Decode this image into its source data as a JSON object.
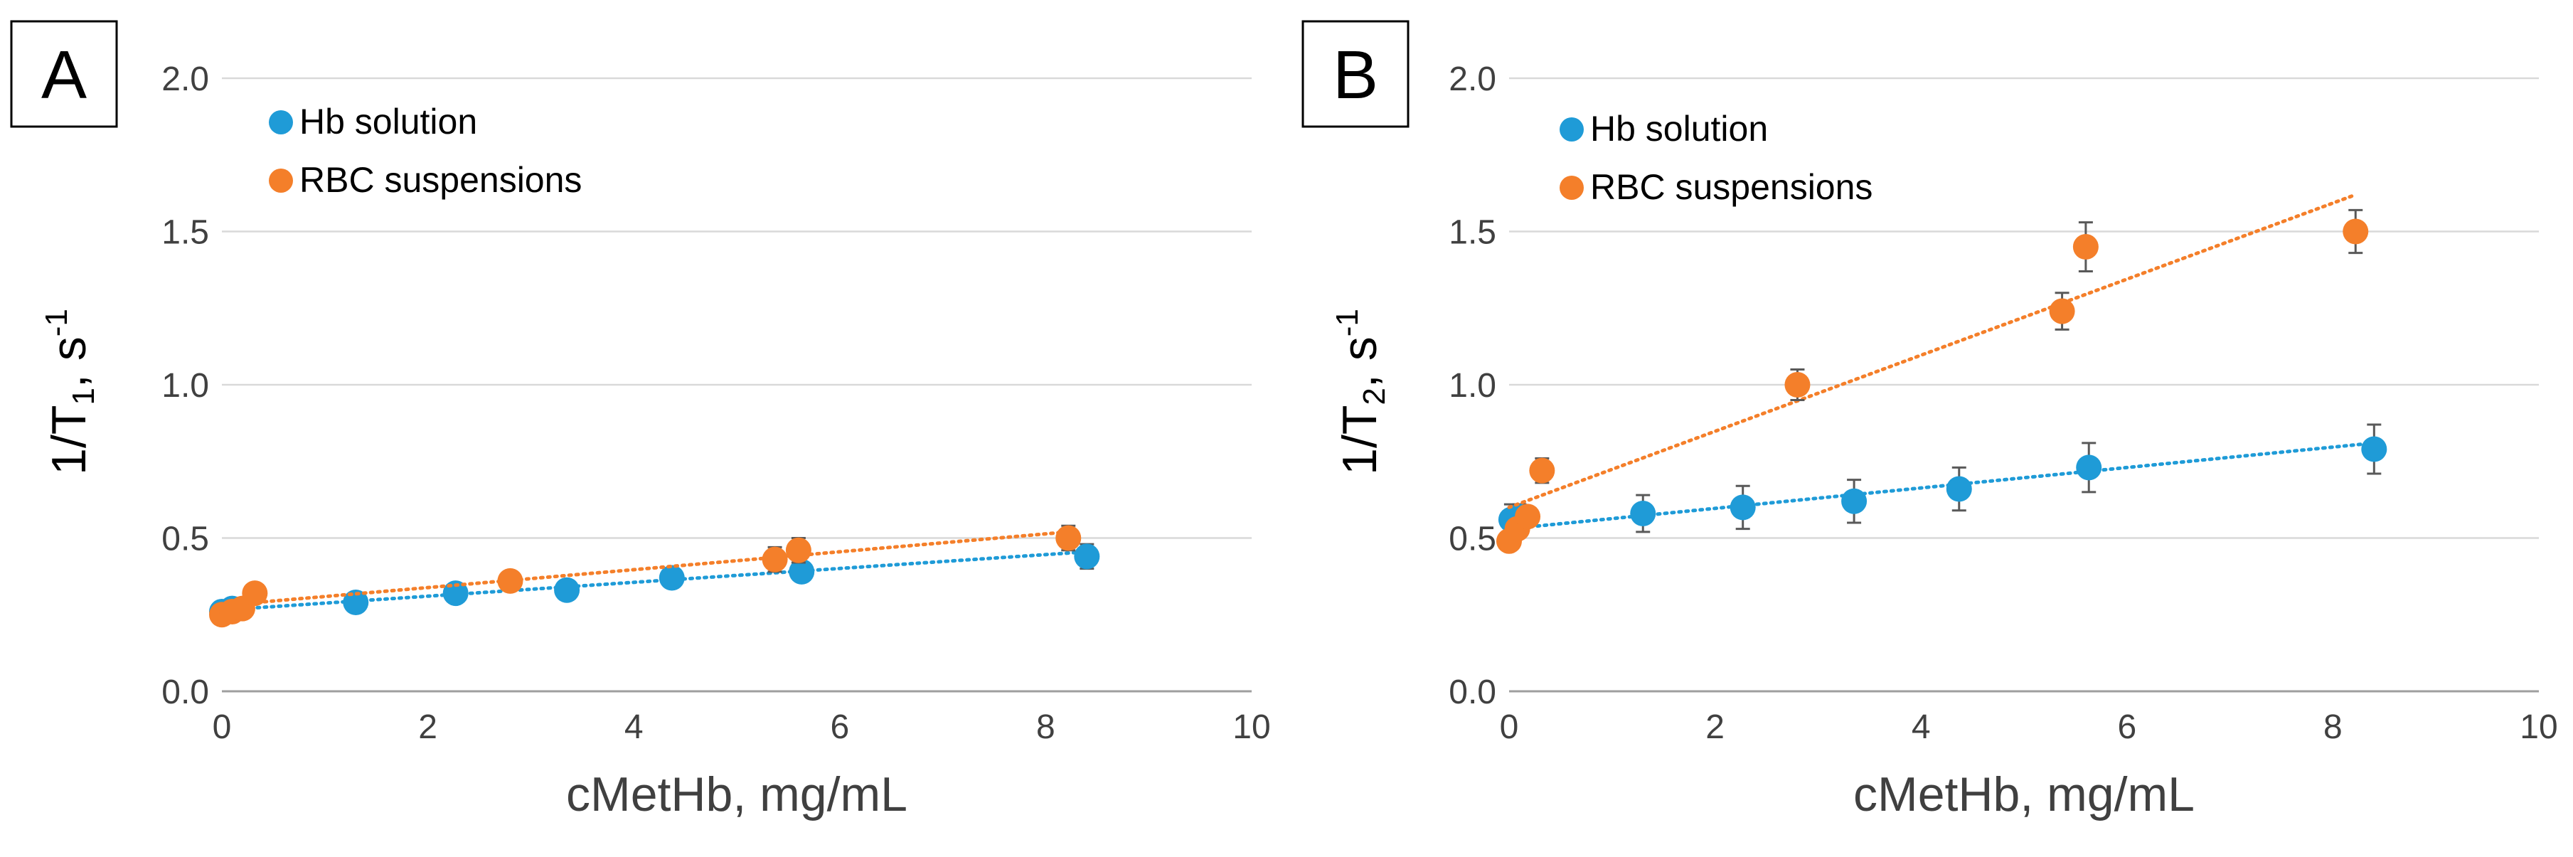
{
  "chart_data": [
    {
      "type": "scatter",
      "panel_label": "A",
      "xlabel": "cMetHb, mg/mL",
      "ylabel": {
        "main": "1/T",
        "sub": "1",
        "tail": ", s",
        "sup": "-1"
      },
      "xlim": [
        0,
        10
      ],
      "ylim": [
        0,
        2
      ],
      "xticks": [
        "0",
        "2",
        "4",
        "6",
        "8",
        "10"
      ],
      "yticks": [
        "0.0",
        "0.5",
        "1.0",
        "1.5",
        "2.0"
      ],
      "grid": "horizontal",
      "legend_position": "top-left",
      "series": [
        {
          "name": "Hb solution",
          "color": "#1f9bd7",
          "x": [
            0.0,
            0.05,
            0.1,
            1.3,
            2.27,
            3.35,
            4.37,
            5.63,
            8.4
          ],
          "y": [
            0.26,
            0.26,
            0.27,
            0.29,
            0.32,
            0.33,
            0.37,
            0.39,
            0.44
          ],
          "yerr": [
            0.02,
            0.02,
            0.02,
            0.02,
            0.02,
            0.02,
            0.03,
            0.03,
            0.04
          ],
          "trend": {
            "x": [
              0.0,
              8.4
            ],
            "y": [
              0.265,
              0.455
            ]
          }
        },
        {
          "name": "RBC suspensions",
          "color": "#f47f2a",
          "x": [
            0.0,
            0.1,
            0.2,
            0.32,
            2.8,
            5.37,
            5.6,
            8.22
          ],
          "y": [
            0.25,
            0.26,
            0.27,
            0.32,
            0.36,
            0.43,
            0.46,
            0.5
          ],
          "yerr": [
            0.02,
            0.02,
            0.02,
            0.02,
            0.03,
            0.04,
            0.04,
            0.04
          ],
          "trend": {
            "x": [
              0.0,
              8.22
            ],
            "y": [
              0.28,
              0.52
            ]
          }
        }
      ]
    },
    {
      "type": "scatter",
      "panel_label": "B",
      "xlabel": "cMetHb, mg/mL",
      "ylabel": {
        "main": "1/T",
        "sub": "2",
        "tail": ", s",
        "sup": "-1"
      },
      "xlim": [
        0,
        10
      ],
      "ylim": [
        0,
        2
      ],
      "xticks": [
        "0",
        "2",
        "4",
        "6",
        "8",
        "10"
      ],
      "yticks": [
        "0.0",
        "0.5",
        "1.0",
        "1.5",
        "2.0"
      ],
      "grid": "horizontal",
      "legend_position": "top-left",
      "series": [
        {
          "name": "Hb solution",
          "color": "#1f9bd7",
          "x": [
            0.02,
            0.1,
            1.3,
            2.27,
            3.35,
            4.37,
            5.63,
            8.4
          ],
          "y": [
            0.56,
            0.57,
            0.58,
            0.6,
            0.62,
            0.66,
            0.73,
            0.79
          ],
          "yerr": [
            0.05,
            0.04,
            0.06,
            0.07,
            0.07,
            0.07,
            0.08,
            0.08
          ],
          "trend": {
            "x": [
              0.0,
              8.4
            ],
            "y": [
              0.53,
              0.81
            ]
          }
        },
        {
          "name": "RBC suspensions",
          "color": "#f47f2a",
          "x": [
            0.0,
            0.08,
            0.18,
            0.32,
            2.8,
            5.37,
            5.6,
            8.22
          ],
          "y": [
            0.49,
            0.53,
            0.57,
            0.72,
            1.0,
            1.24,
            1.45,
            1.5
          ],
          "yerr": [
            0.03,
            0.03,
            0.03,
            0.04,
            0.05,
            0.06,
            0.08,
            0.07
          ],
          "trend": {
            "x": [
              0.0,
              8.22
            ],
            "y": [
              0.6,
              1.62
            ]
          }
        }
      ]
    }
  ]
}
